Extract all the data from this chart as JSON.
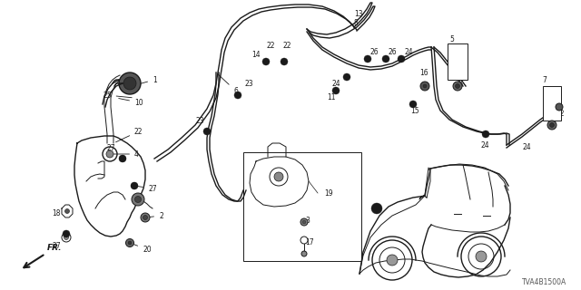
{
  "bg_color": "#ffffff",
  "diagram_code": "TVA4B1500A",
  "fig_size": [
    6.4,
    3.2
  ],
  "dpi": 100,
  "label_fontsize": 5.5,
  "note_text": "TVA4B1500A"
}
